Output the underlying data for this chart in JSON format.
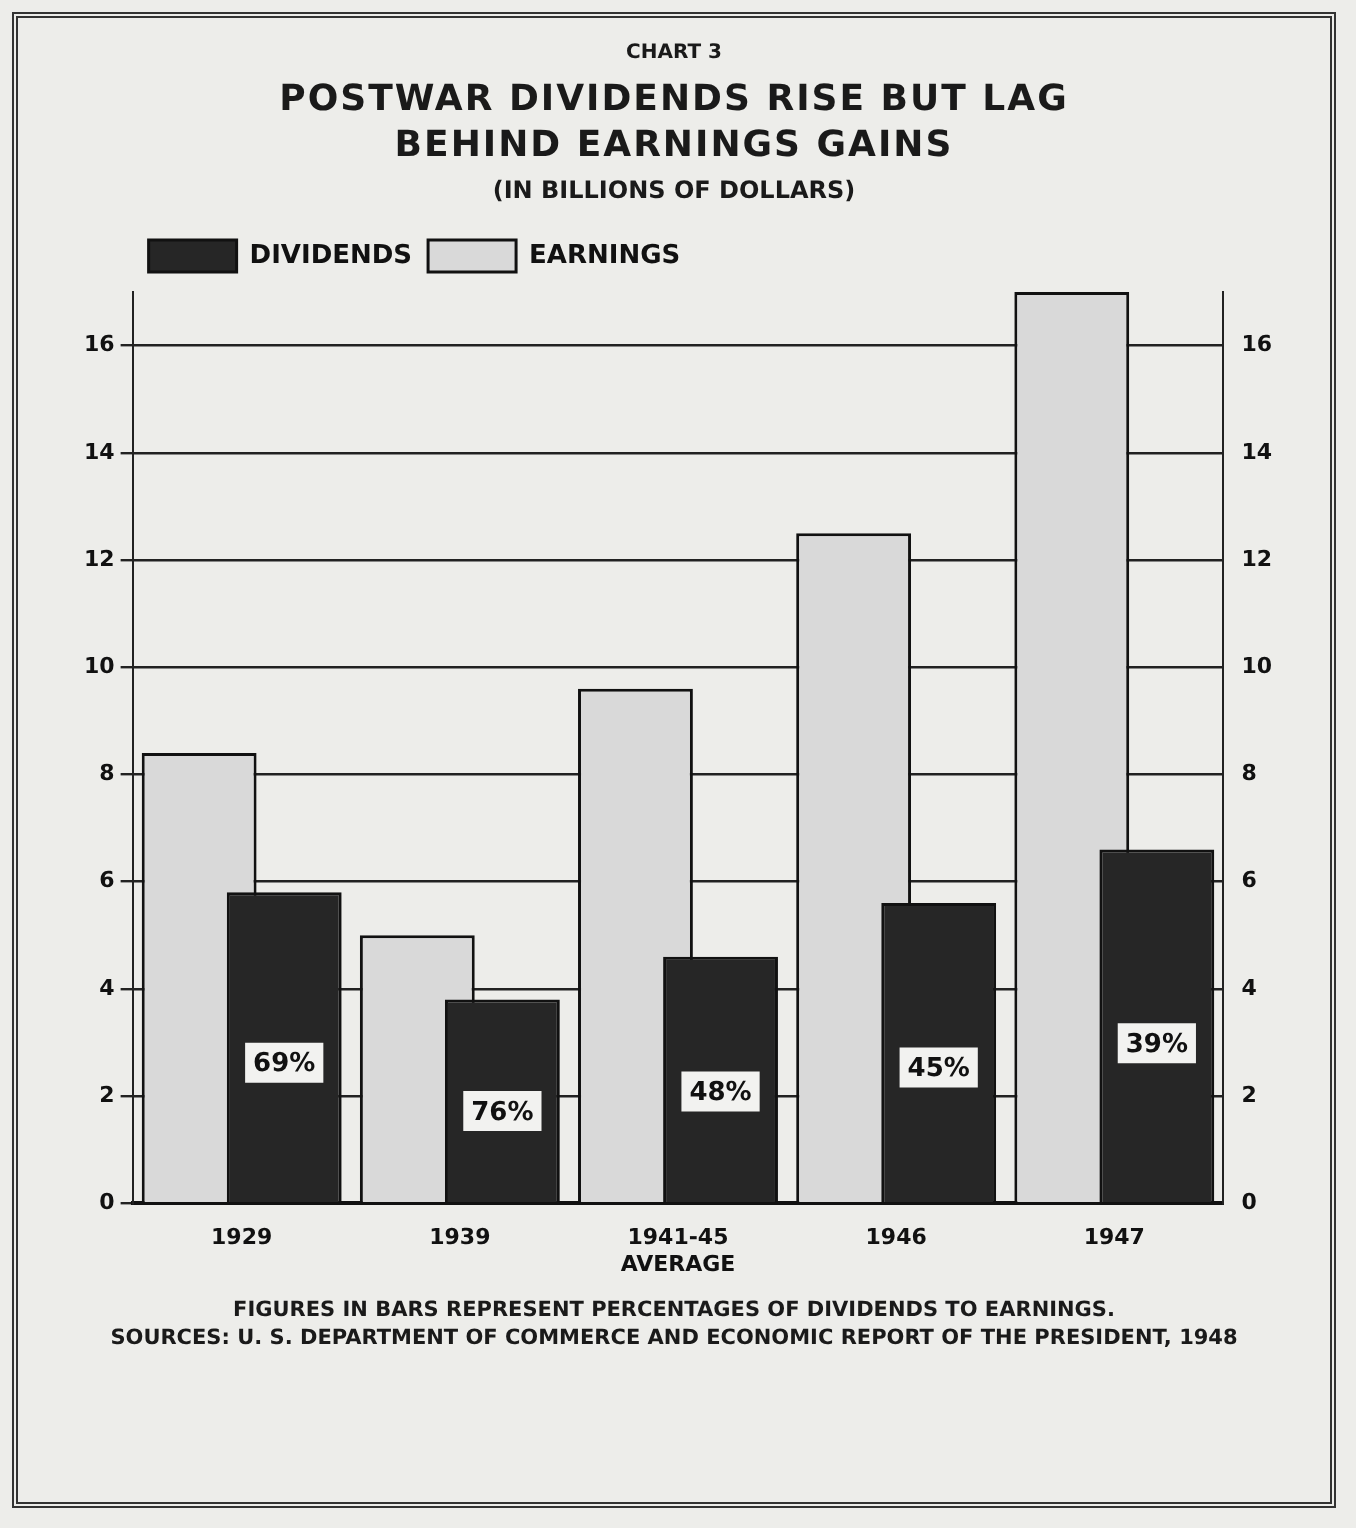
{
  "chart_data": {
    "type": "bar",
    "title": "POSTWAR DIVIDENDS RISE BUT LAG BEHIND EARNINGS GAINS",
    "subtitle": "(IN BILLIONS OF DOLLARS)",
    "categories": [
      "1929",
      "1939",
      "1941-45\nAVERAGE",
      "1946",
      "1947"
    ],
    "series": [
      {
        "name": "EARNINGS",
        "color": "#d9d9d9",
        "values": [
          8.4,
          5.0,
          9.6,
          12.5,
          17.0
        ]
      },
      {
        "name": "DIVIDENDS",
        "color": "#262626",
        "values": [
          5.8,
          3.8,
          4.6,
          5.6,
          6.6
        ]
      }
    ],
    "ylim": [
      0,
      17
    ],
    "yticks": [
      0,
      2,
      4,
      6,
      8,
      10,
      12,
      14,
      16
    ],
    "y2lim": [
      0,
      17
    ],
    "y2ticks": [
      0,
      2,
      4,
      6,
      8,
      10,
      12,
      14,
      16
    ],
    "grid": "y",
    "legend": "top left",
    "annotations": [
      "CHART 3",
      "69%",
      "76%",
      "48%",
      "45%",
      "39%",
      "FIGURES IN BARS REPRESENT PERCENTAGES OF DIVIDENDS TO EARNINGS.",
      "SOURCES: U. S. DEPARTMENT OF COMMERCE AND ECONOMIC REPORT OF THE PRESIDENT, 1948"
    ]
  }
}
